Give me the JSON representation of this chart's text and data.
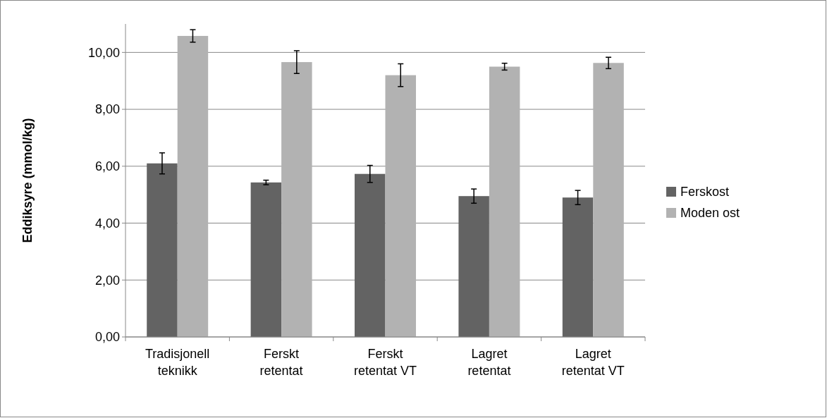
{
  "chart_data": {
    "type": "bar",
    "ylabel": "Eddiksyre (mmol/kg)",
    "categories": [
      "Tradisjonell teknikk",
      "Ferskt retentat",
      "Ferskt retentat VT",
      "Lagret retentat",
      "Lagret retentat VT"
    ],
    "series": [
      {
        "name": "Ferskost",
        "color": "#636363",
        "values": [
          6.1,
          5.43,
          5.73,
          4.95,
          4.9
        ],
        "errors": [
          0.37,
          0.08,
          0.3,
          0.25,
          0.25
        ]
      },
      {
        "name": "Moden ost",
        "color": "#b2b2b2",
        "values": [
          10.58,
          9.66,
          9.2,
          9.5,
          9.63
        ],
        "errors": [
          0.22,
          0.4,
          0.4,
          0.12,
          0.2
        ]
      }
    ],
    "ylim": [
      0,
      11
    ],
    "yticks": [
      {
        "value": 0,
        "label": "0,00"
      },
      {
        "value": 2,
        "label": "2,00"
      },
      {
        "value": 4,
        "label": "4,00"
      },
      {
        "value": 6,
        "label": "6,00"
      },
      {
        "value": 8,
        "label": "8,00"
      },
      {
        "value": 10,
        "label": "10,00"
      }
    ],
    "grid": "y",
    "legend": "right"
  }
}
